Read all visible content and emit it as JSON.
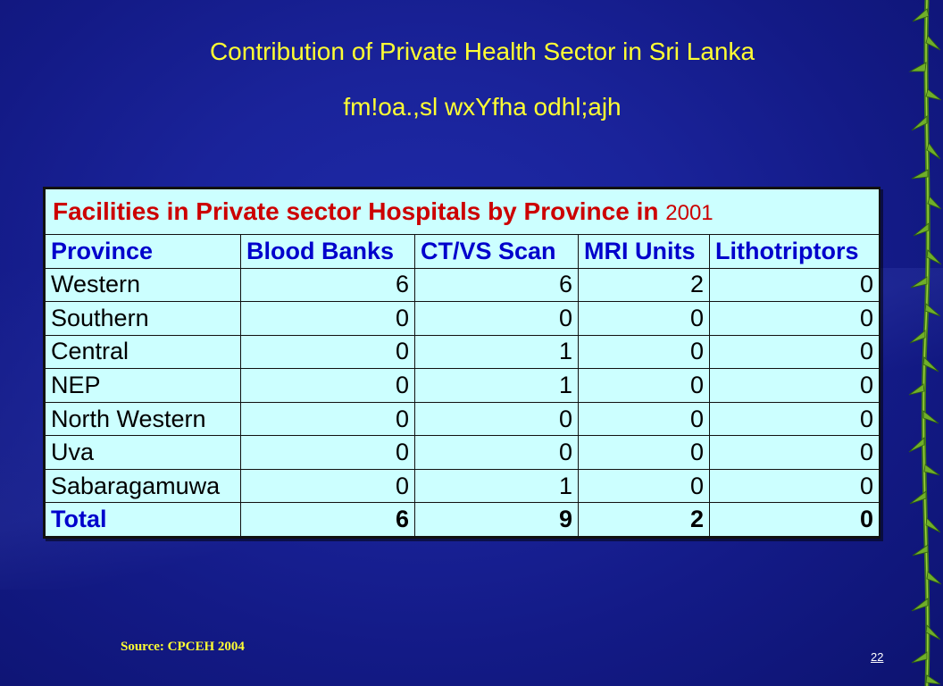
{
  "title": "Contribution of Private Health Sector in Sri Lanka",
  "subtitle": "fm!oa.,sl wxYfha odhl;ajh",
  "table": {
    "caption": "Facilities in Private sector Hospitals by Province in",
    "caption_year": "2001",
    "headers": [
      "Province",
      "Blood Banks",
      "CT/VS Scan",
      "MRI Units",
      "Lithotriptors"
    ],
    "rows": [
      [
        "Western",
        "6",
        "6",
        "2",
        "0"
      ],
      [
        "Southern",
        "0",
        "0",
        "0",
        "0"
      ],
      [
        "Central",
        "0",
        "1",
        "0",
        "0"
      ],
      [
        "NEP",
        "0",
        "1",
        "0",
        "0"
      ],
      [
        "North Western",
        "0",
        "0",
        "0",
        "0"
      ],
      [
        "Uva",
        "0",
        "0",
        "0",
        "0"
      ],
      [
        "Sabaragamuwa",
        "0",
        "1",
        "0",
        "0"
      ]
    ],
    "total": [
      "Total",
      "6",
      "9",
      "2",
      "0"
    ]
  },
  "source": "Source: CPCEH 2004",
  "page_number": "22",
  "colors": {
    "background": "#1a239a",
    "title": "#ffff33",
    "table_fill": "#ccffff",
    "caption": "#cc0000",
    "header": "#0000cc"
  }
}
